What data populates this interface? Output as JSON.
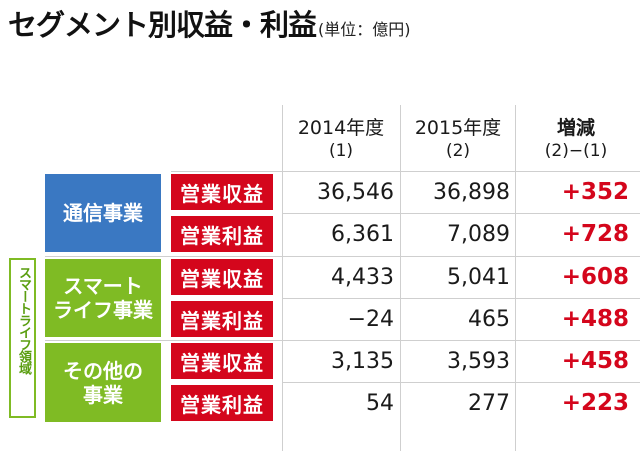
{
  "title": "セグメント別収益・利益",
  "unit": "(単位：億円)",
  "headers": {
    "col2014": "2014年度",
    "col2014_sub": "(1)",
    "col2015": "2015年度",
    "col2015_sub": "(2)",
    "diff": "増減",
    "diff_sub": "(2)−(1)"
  },
  "segments": [
    {
      "name": "通信事業",
      "rows": [
        {
          "metric": "営業収益",
          "y2014": "36,546",
          "y2015": "36,898",
          "diff": "+352"
        },
        {
          "metric": "営業利益",
          "y2014": "6,361",
          "y2015": "7,089",
          "diff": "+728"
        }
      ]
    },
    {
      "name_line1": "スマート",
      "name_line2": "ライフ事業",
      "rows": [
        {
          "metric": "営業収益",
          "y2014": "4,433",
          "y2015": "5,041",
          "diff": "+608"
        },
        {
          "metric": "営業利益",
          "y2014": "−24",
          "y2015": "465",
          "diff": "+488"
        }
      ]
    },
    {
      "name_line1": "その他の",
      "name_line2": "事業",
      "rows": [
        {
          "metric": "営業収益",
          "y2014": "3,135",
          "y2015": "3,593",
          "diff": "+458"
        },
        {
          "metric": "営業利益",
          "y2014": "54",
          "y2015": "277",
          "diff": "+223"
        }
      ]
    }
  ],
  "smartlife_domain_label": "スマートライフ領域",
  "colors": {
    "telecom": "#3a78c2",
    "smartlife": "#7fbb24",
    "metric": "#d4061c",
    "increase": "#d4061c"
  }
}
